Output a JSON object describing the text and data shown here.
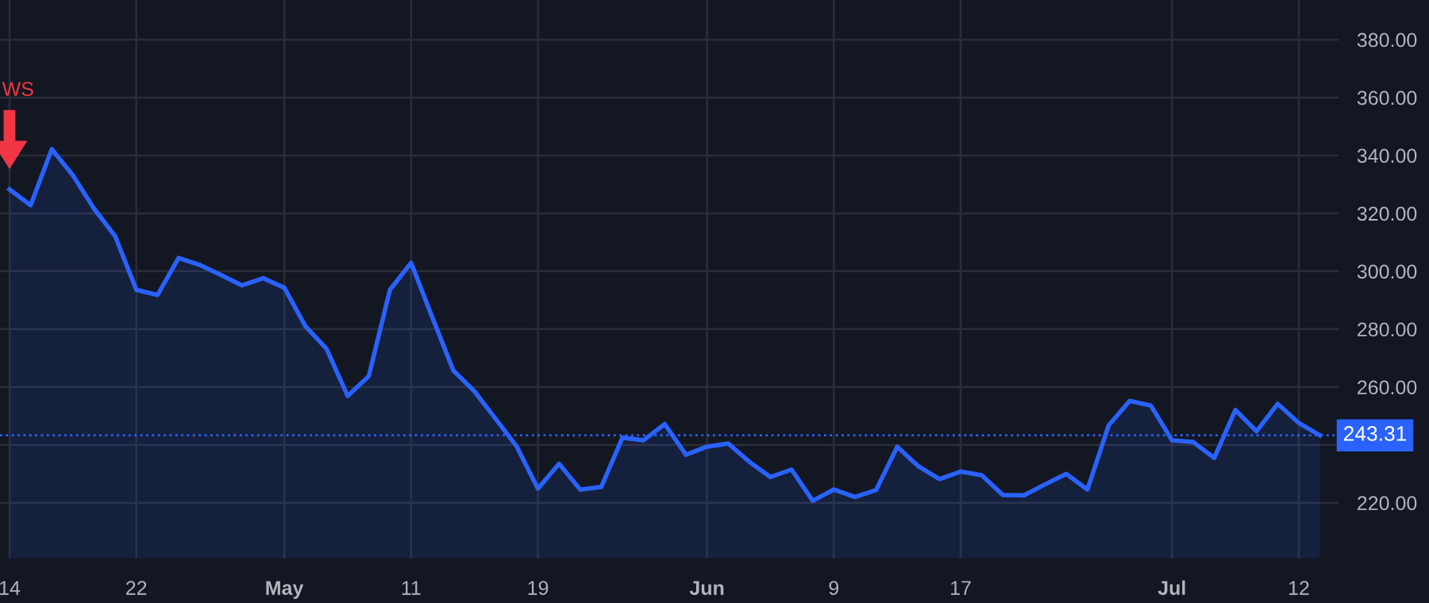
{
  "chart_data": {
    "type": "area",
    "categories": [
      "14",
      null,
      null,
      null,
      null,
      null,
      "22",
      null,
      null,
      null,
      null,
      null,
      null,
      "May",
      null,
      null,
      null,
      null,
      null,
      "11",
      null,
      null,
      null,
      null,
      null,
      "19",
      null,
      null,
      null,
      null,
      null,
      null,
      null,
      "Jun",
      null,
      null,
      null,
      null,
      null,
      "9",
      null,
      null,
      null,
      null,
      null,
      "17",
      null,
      null,
      null,
      null,
      null,
      null,
      null,
      null,
      null,
      "Jul",
      null,
      null,
      null,
      null,
      null,
      "12",
      null
    ],
    "series": [
      {
        "color": "#2962ff",
        "values": [
          328.3,
          322.8,
          342.2,
          333.1,
          321.6,
          312.1,
          293.6,
          291.8,
          304.6,
          302.2,
          298.7,
          295.1,
          297.6,
          294.3,
          281,
          273.2,
          256.9,
          263.8,
          293.6,
          302.9,
          284.1,
          265.7,
          258.5,
          249,
          239.4,
          224.9,
          233.5,
          224.6,
          225.5,
          242.5,
          241.6,
          247.2,
          236.6,
          239.4,
          240.5,
          234.2,
          228.9,
          231.5,
          220.7,
          224.6,
          222,
          224.4,
          239.4,
          232.6,
          228.2,
          230.8,
          229.5,
          222.7,
          222.6,
          226.4,
          230,
          224.6,
          246.7,
          255.2,
          253.6,
          241.6,
          241,
          235.5,
          252.1,
          244.7,
          254.2,
          247.6,
          243.3
        ]
      }
    ],
    "ylim": [
      200.8,
      393.7
    ],
    "yticks": [
      {
        "value": 220,
        "label": "220.00"
      },
      {
        "value": 240,
        "label": null
      },
      {
        "value": 260,
        "label": "260.00"
      },
      {
        "value": 280,
        "label": "280.00"
      },
      {
        "value": 300,
        "label": "300.00"
      },
      {
        "value": 320,
        "label": "320.00"
      },
      {
        "value": 340,
        "label": "340.00"
      },
      {
        "value": 360,
        "label": "360.00"
      },
      {
        "value": 380,
        "label": "380.00"
      }
    ],
    "ref_lines": [
      {
        "axis": "y",
        "value": 243.31,
        "label": "243.31",
        "color": "#2962ff",
        "line_style": "dotted"
      }
    ],
    "annotations": [
      "WS"
    ],
    "grid": true,
    "marker": "none",
    "line_style": "solid"
  }
}
